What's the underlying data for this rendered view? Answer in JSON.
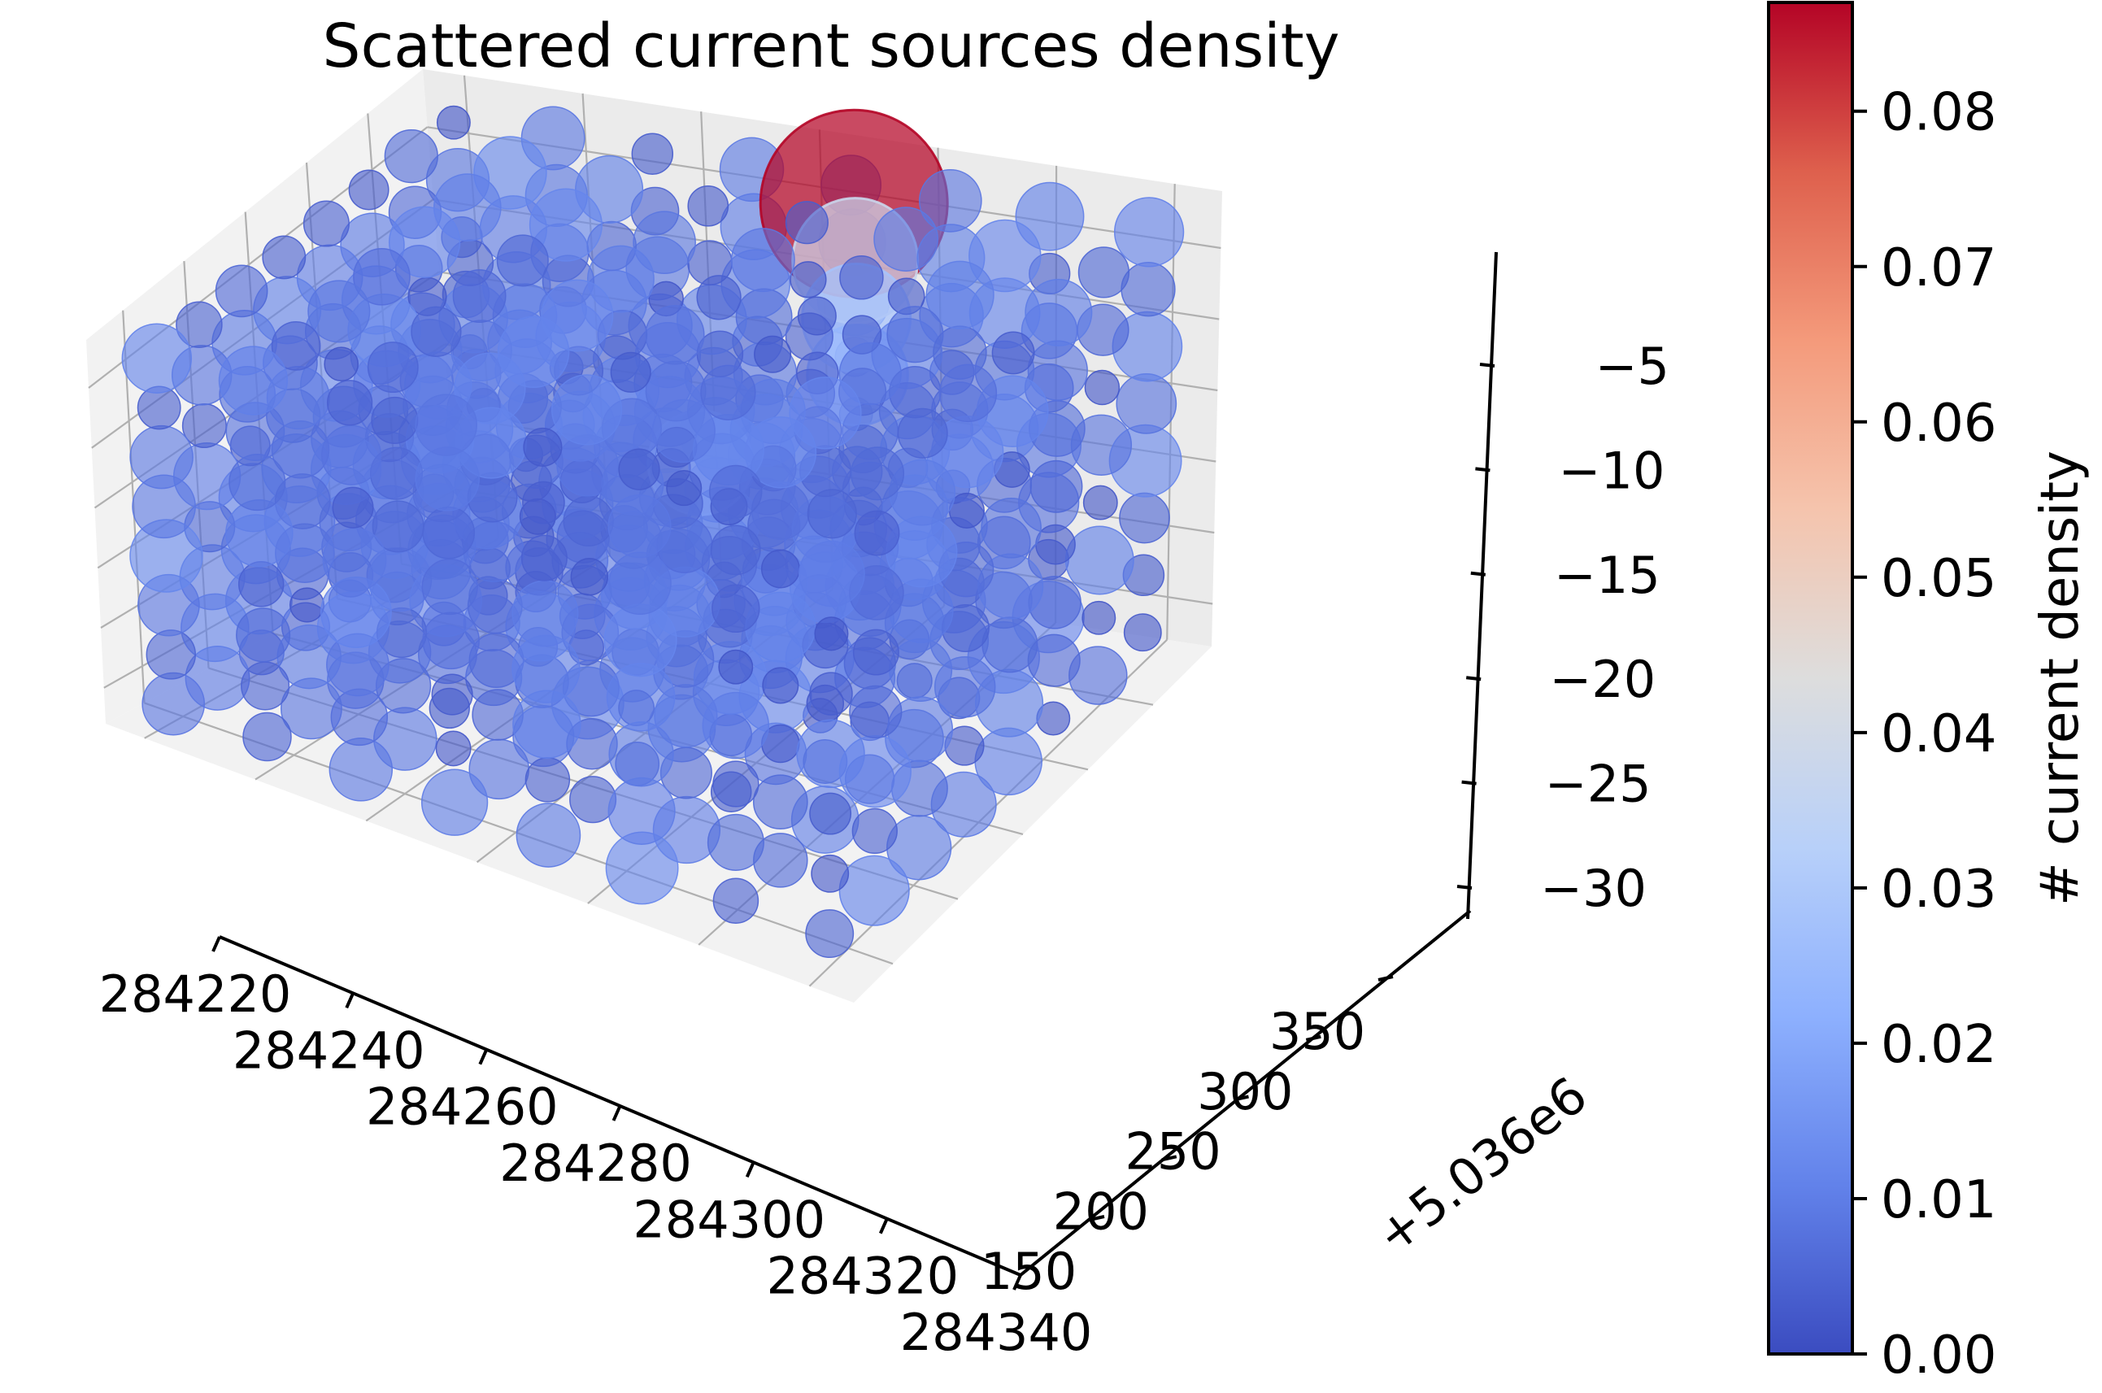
{
  "chart_data": {
    "type": "scatter",
    "projection": "3d",
    "title": "Scattered current sources density",
    "x_axis": {
      "ticks": [
        284220,
        284240,
        284260,
        284280,
        284300,
        284320,
        284340
      ],
      "tick_labels": [
        "284220",
        "284240",
        "284260",
        "284280",
        "284300",
        "284320",
        "284340"
      ],
      "label": ""
    },
    "y_axis": {
      "ticks": [
        150,
        200,
        250,
        300,
        350
      ],
      "tick_labels": [
        "150",
        "200",
        "250",
        "300",
        "350"
      ],
      "offset_label": "+5.036e6",
      "label": ""
    },
    "z_axis": {
      "ticks": [
        -30,
        -25,
        -20,
        -15,
        -10,
        -5
      ],
      "tick_labels": [
        "−30",
        "−25",
        "−20",
        "−15",
        "−10",
        "−5"
      ],
      "label": ""
    },
    "grid": "on",
    "colormap": {
      "name": "coolwarm",
      "label": "# current density",
      "range": [
        0.0,
        0.087
      ],
      "ticks": [
        0.0,
        0.01,
        0.02,
        0.03,
        0.04,
        0.05,
        0.06,
        0.07,
        0.08
      ],
      "tick_labels": [
        "0.00",
        "0.01",
        "0.02",
        "0.03",
        "0.04",
        "0.05",
        "0.06",
        "0.07",
        "0.08"
      ]
    },
    "grid_points": {
      "count_per_axis": 8,
      "x_range": [
        284213,
        284348
      ],
      "y_range": [
        5036120,
        5036395
      ],
      "z_range": [
        -33,
        -1
      ],
      "background_density_range": [
        0.002,
        0.012
      ]
    },
    "highlighted_points": [
      {
        "x": 284290,
        "y": 5036375,
        "z": -4,
        "value": 0.087
      },
      {
        "x": 284290,
        "y": 5036375,
        "z": -8,
        "value": 0.038
      },
      {
        "x": 284290,
        "y": 5036375,
        "z": -12,
        "value": 0.028
      },
      {
        "x": 284290,
        "y": 5036375,
        "z": -16,
        "value": 0.024
      },
      {
        "x": 284270,
        "y": 5036340,
        "z": -21,
        "value": 0.026
      }
    ]
  }
}
